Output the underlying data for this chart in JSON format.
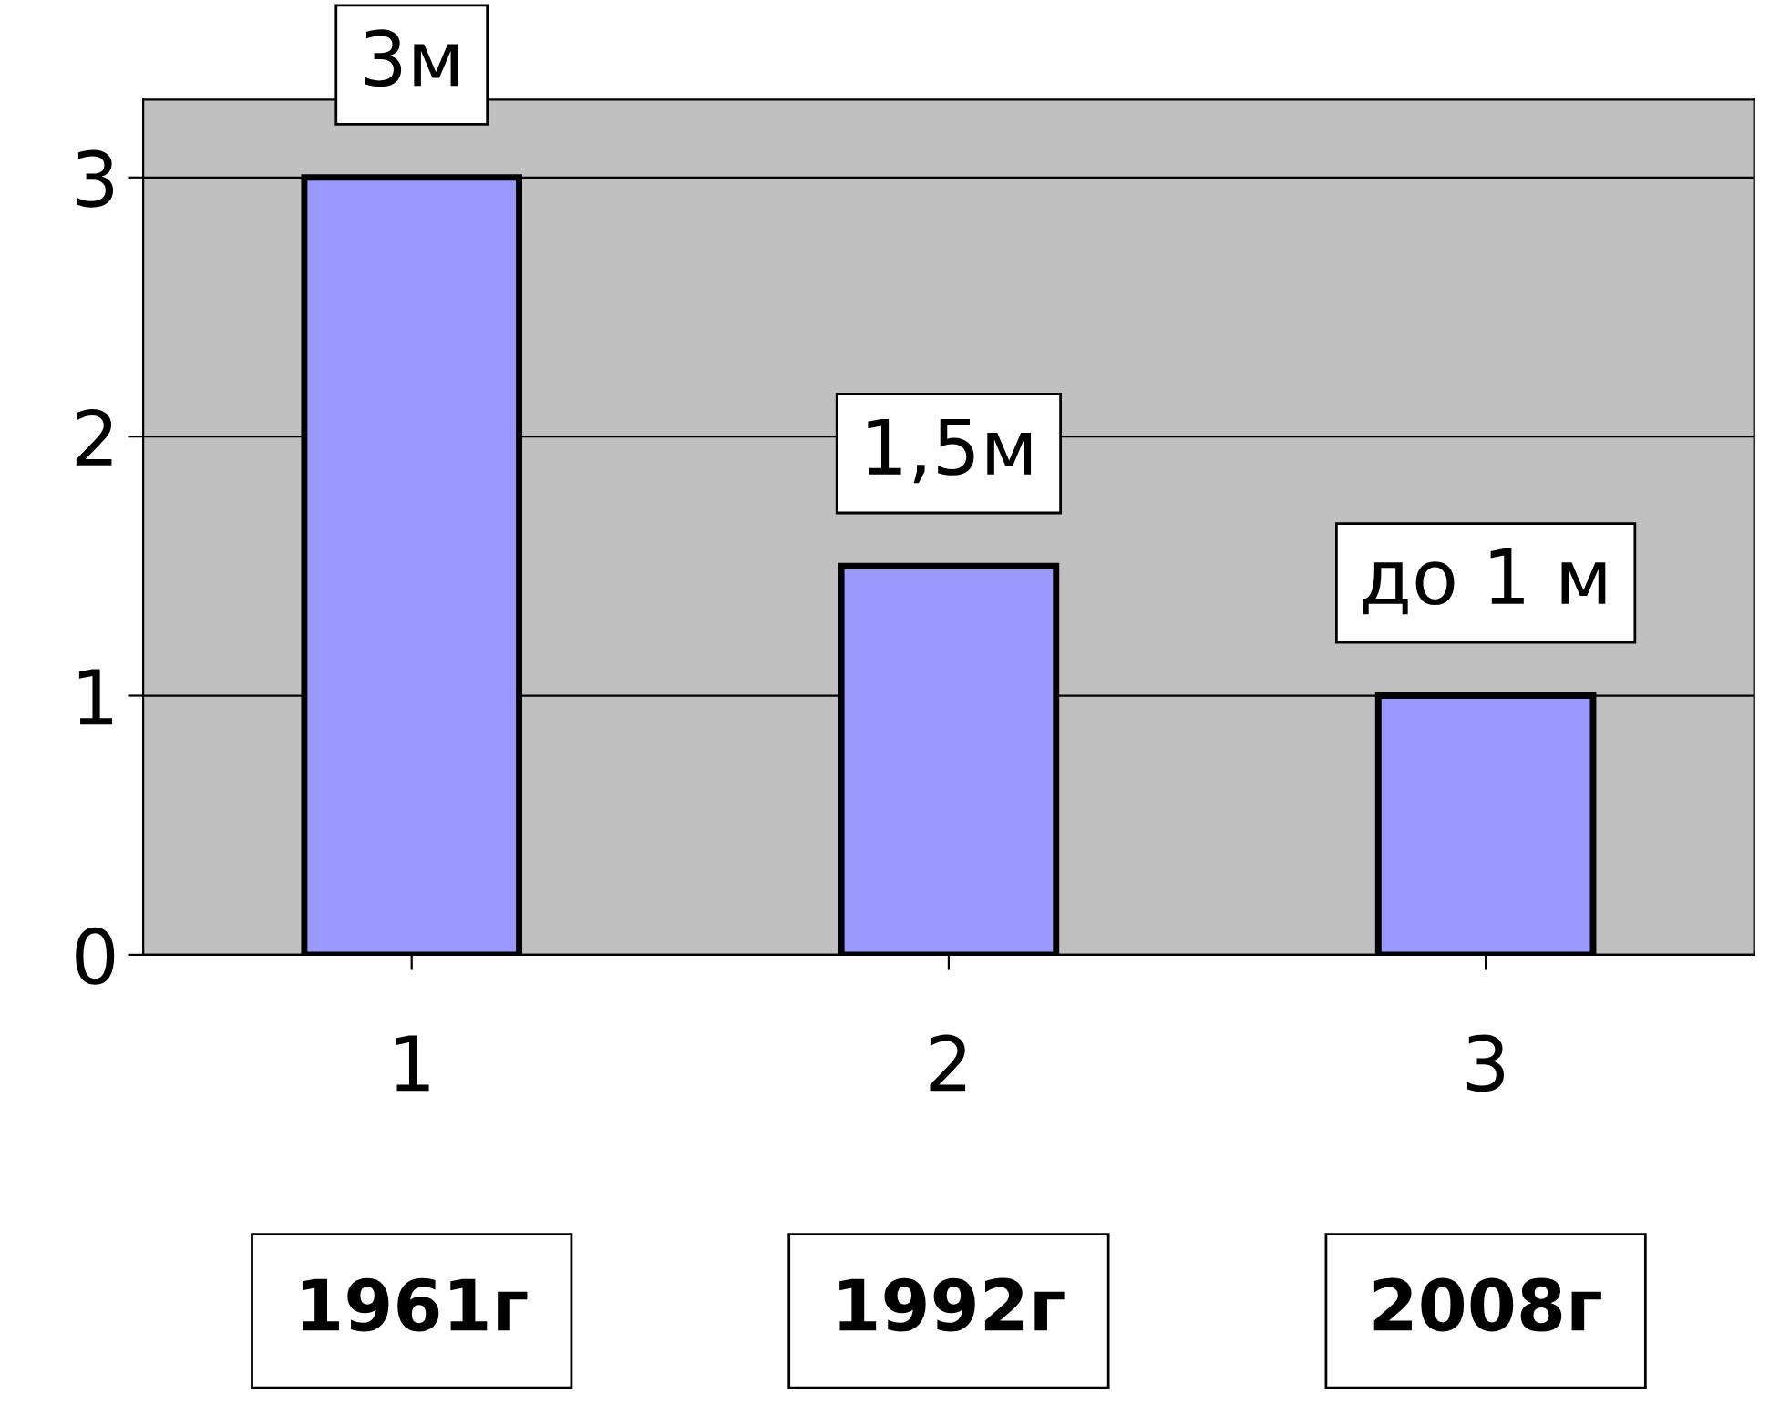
{
  "chart_data": {
    "type": "bar",
    "categories": [
      "1",
      "2",
      "3"
    ],
    "values": [
      3,
      1.5,
      1
    ],
    "value_labels": [
      "3м",
      "1,5м",
      "до 1 м"
    ],
    "color": "#9999ff",
    "ylim": [
      0,
      3.3
    ],
    "yticks": [
      0,
      1,
      2,
      3
    ],
    "grid": "y",
    "annotations": [
      "1961г",
      "1992г",
      "2008г"
    ]
  }
}
